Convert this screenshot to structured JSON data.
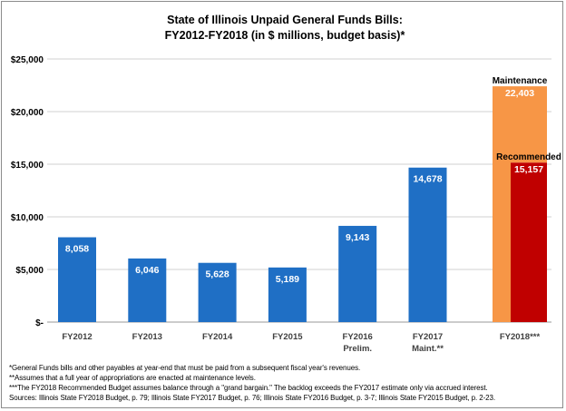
{
  "chart_data": {
    "type": "bar",
    "title": "State of Illinois Unpaid General Funds Bills:",
    "subtitle": "FY2012-FY2018 (in $ millions, budget basis)*",
    "ylim": [
      0,
      25000
    ],
    "yticks": [
      {
        "value": 0,
        "label": "$-"
      },
      {
        "value": 5000,
        "label": "$5,000"
      },
      {
        "value": 10000,
        "label": "$10,000"
      },
      {
        "value": 15000,
        "label": "$15,000"
      },
      {
        "value": 20000,
        "label": "$20,000"
      },
      {
        "value": 25000,
        "label": "$25,000"
      }
    ],
    "grid": true,
    "bars": [
      {
        "category": "FY2012",
        "sub": "",
        "value": 8058,
        "label": "8,058",
        "color": "#1f6fc5"
      },
      {
        "category": "FY2013",
        "sub": "",
        "value": 6046,
        "label": "6,046",
        "color": "#1f6fc5"
      },
      {
        "category": "FY2014",
        "sub": "",
        "value": 5628,
        "label": "5,628",
        "color": "#1f6fc5"
      },
      {
        "category": "FY2015",
        "sub": "",
        "value": 5189,
        "label": "5,189",
        "color": "#1f6fc5"
      },
      {
        "category": "FY2016",
        "sub": "Prelim.",
        "value": 9143,
        "label": "9,143",
        "color": "#1f6fc5"
      },
      {
        "category": "FY2017",
        "sub": "Maint.**",
        "value": 14678,
        "label": "14,678",
        "color": "#1f6fc5"
      }
    ],
    "fy2018": {
      "category": "FY2018***",
      "maintenance": {
        "name": "Maintenance",
        "value": 22403,
        "label": "22,403",
        "color": "#f79646"
      },
      "recommended": {
        "name": "Recommended",
        "value": 15157,
        "label": "15,157",
        "color": "#c00000"
      }
    }
  },
  "footnotes": [
    "*General Funds bills and other payables at year-end that must be paid from a subsequent fiscal year's revenues.",
    "**Assumes that a full year of appropriations are enacted at maintenance levels.",
    "***The FY2018 Recommended Budget assumes balance through a \"grand bargain.\" The backlog exceeds the FY2017 estimate only via accrued interest.",
    "Sources: Illinois State FY2018 Budget, p. 79; Illinois State FY2017 Budget, p. 76; Illinois State FY2016 Budget, p. 3-7; Illinois State FY2015 Budget, p. 2-23."
  ]
}
